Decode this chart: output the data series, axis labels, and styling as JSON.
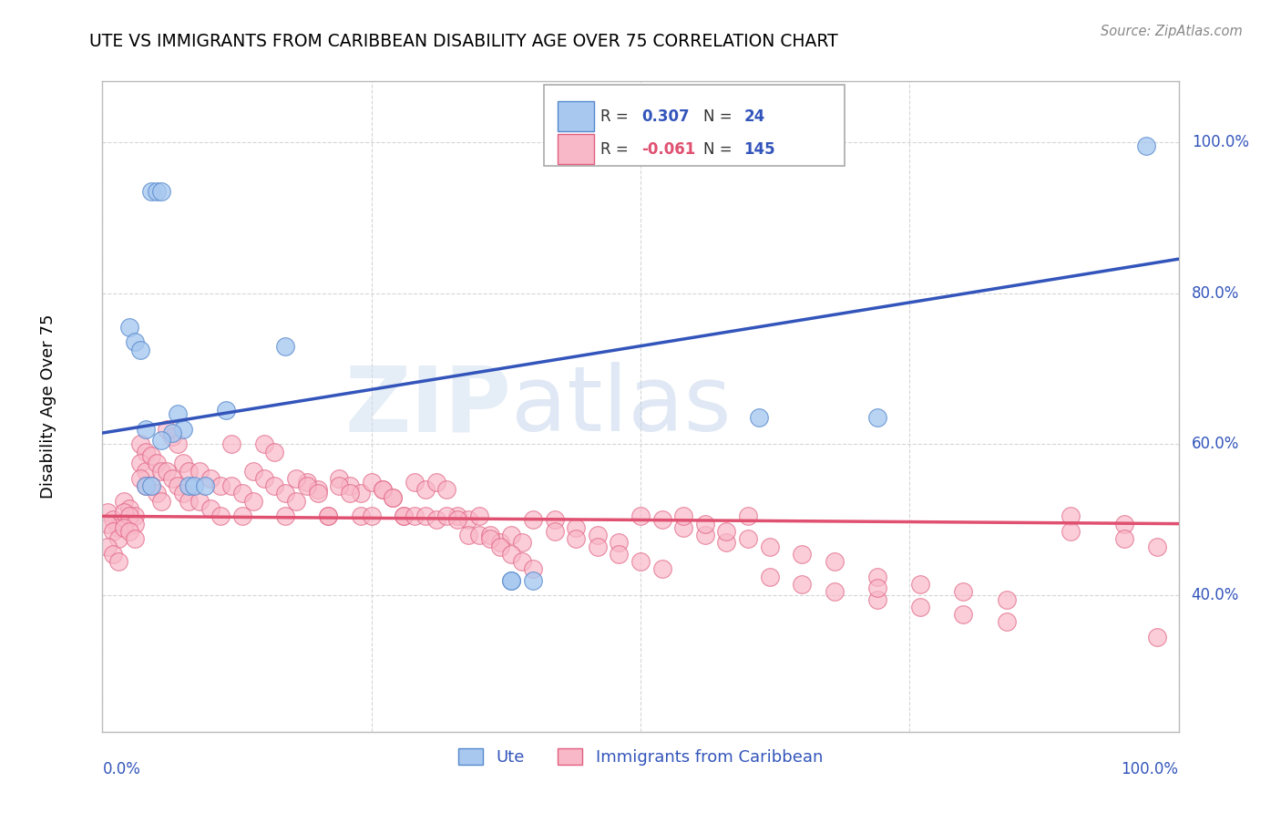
{
  "title": "UTE VS IMMIGRANTS FROM CARIBBEAN DISABILITY AGE OVER 75 CORRELATION CHART",
  "source": "Source: ZipAtlas.com",
  "ylabel": "Disability Age Over 75",
  "ute_color": "#a8c8f0",
  "ute_edge_color": "#5588cc",
  "caribbean_color": "#f8b8c8",
  "caribbean_edge_color": "#e06080",
  "ute_line_color": "#3355bb",
  "caribbean_line_color": "#e05070",
  "legend_text_color": "#3355bb",
  "stat_text_color": "#3355bb",
  "background_color": "#ffffff",
  "grid_color": "#cccccc",
  "watermark_color": "#c8d8ee",
  "ute_R": "0.307",
  "ute_N": "24",
  "caribbean_R": "-0.061",
  "caribbean_N": "145",
  "xlim": [
    0.0,
    1.0
  ],
  "ylim": [
    0.22,
    1.08
  ],
  "yticks": [
    0.4,
    0.6,
    0.8,
    1.0
  ],
  "ytick_labels": [
    "40.0%",
    "60.0%",
    "80.0%",
    "100.0%"
  ],
  "ute_line_x0": 0.0,
  "ute_line_y0": 0.615,
  "ute_line_x1": 1.0,
  "ute_line_y1": 0.845,
  "carib_line_x0": 0.0,
  "carib_line_y0": 0.505,
  "carib_line_x1": 1.0,
  "carib_line_y1": 0.495,
  "ute_x": [
    0.045,
    0.05,
    0.055,
    0.025,
    0.03,
    0.035,
    0.04,
    0.07,
    0.075,
    0.065,
    0.055,
    0.04,
    0.045,
    0.17,
    0.115,
    0.08,
    0.085,
    0.095,
    0.61,
    0.72,
    0.38,
    0.4,
    0.97,
    0.38
  ],
  "ute_y": [
    0.935,
    0.935,
    0.935,
    0.755,
    0.735,
    0.725,
    0.62,
    0.64,
    0.62,
    0.615,
    0.605,
    0.545,
    0.545,
    0.73,
    0.645,
    0.545,
    0.545,
    0.545,
    0.635,
    0.635,
    0.42,
    0.42,
    0.995,
    0.42
  ],
  "carib_x": [
    0.005,
    0.01,
    0.015,
    0.02,
    0.025,
    0.03,
    0.035,
    0.04,
    0.005,
    0.01,
    0.015,
    0.02,
    0.025,
    0.03,
    0.035,
    0.04,
    0.005,
    0.01,
    0.015,
    0.02,
    0.025,
    0.03,
    0.035,
    0.04,
    0.045,
    0.05,
    0.055,
    0.06,
    0.065,
    0.07,
    0.075,
    0.08,
    0.045,
    0.05,
    0.055,
    0.06,
    0.065,
    0.07,
    0.075,
    0.08,
    0.09,
    0.1,
    0.11,
    0.12,
    0.09,
    0.1,
    0.11,
    0.12,
    0.13,
    0.14,
    0.15,
    0.16,
    0.13,
    0.14,
    0.15,
    0.16,
    0.17,
    0.18,
    0.19,
    0.2,
    0.17,
    0.18,
    0.19,
    0.2,
    0.21,
    0.22,
    0.23,
    0.24,
    0.21,
    0.22,
    0.23,
    0.24,
    0.25,
    0.26,
    0.27,
    0.28,
    0.29,
    0.3,
    0.25,
    0.26,
    0.27,
    0.28,
    0.29,
    0.3,
    0.31,
    0.32,
    0.33,
    0.34,
    0.35,
    0.31,
    0.32,
    0.33,
    0.34,
    0.35,
    0.36,
    0.37,
    0.38,
    0.39,
    0.4,
    0.36,
    0.37,
    0.38,
    0.39,
    0.4,
    0.42,
    0.44,
    0.46,
    0.48,
    0.5,
    0.52,
    0.54,
    0.56,
    0.58,
    0.6,
    0.42,
    0.44,
    0.46,
    0.48,
    0.5,
    0.52,
    0.54,
    0.56,
    0.58,
    0.6,
    0.62,
    0.65,
    0.68,
    0.72,
    0.76,
    0.8,
    0.84,
    0.62,
    0.65,
    0.68,
    0.72,
    0.76,
    0.8,
    0.84,
    0.9,
    0.95,
    0.98,
    0.9,
    0.95,
    0.98,
    0.72
  ],
  "carib_y": [
    0.51,
    0.5,
    0.49,
    0.525,
    0.515,
    0.505,
    0.6,
    0.59,
    0.495,
    0.485,
    0.475,
    0.51,
    0.505,
    0.495,
    0.575,
    0.565,
    0.465,
    0.455,
    0.445,
    0.49,
    0.485,
    0.475,
    0.555,
    0.545,
    0.585,
    0.575,
    0.565,
    0.62,
    0.61,
    0.6,
    0.575,
    0.565,
    0.545,
    0.535,
    0.525,
    0.565,
    0.555,
    0.545,
    0.535,
    0.525,
    0.565,
    0.555,
    0.545,
    0.6,
    0.525,
    0.515,
    0.505,
    0.545,
    0.535,
    0.525,
    0.6,
    0.59,
    0.505,
    0.565,
    0.555,
    0.545,
    0.535,
    0.525,
    0.55,
    0.54,
    0.505,
    0.555,
    0.545,
    0.535,
    0.505,
    0.555,
    0.545,
    0.535,
    0.505,
    0.545,
    0.535,
    0.505,
    0.55,
    0.54,
    0.53,
    0.505,
    0.55,
    0.54,
    0.505,
    0.54,
    0.53,
    0.505,
    0.505,
    0.505,
    0.55,
    0.54,
    0.505,
    0.5,
    0.505,
    0.5,
    0.505,
    0.5,
    0.48,
    0.48,
    0.48,
    0.47,
    0.48,
    0.47,
    0.5,
    0.475,
    0.465,
    0.455,
    0.445,
    0.435,
    0.5,
    0.49,
    0.48,
    0.47,
    0.505,
    0.5,
    0.49,
    0.48,
    0.47,
    0.505,
    0.485,
    0.475,
    0.465,
    0.455,
    0.445,
    0.435,
    0.505,
    0.495,
    0.485,
    0.475,
    0.465,
    0.455,
    0.445,
    0.425,
    0.415,
    0.405,
    0.395,
    0.425,
    0.415,
    0.405,
    0.395,
    0.385,
    0.375,
    0.365,
    0.505,
    0.495,
    0.345,
    0.485,
    0.475,
    0.465,
    0.41
  ]
}
